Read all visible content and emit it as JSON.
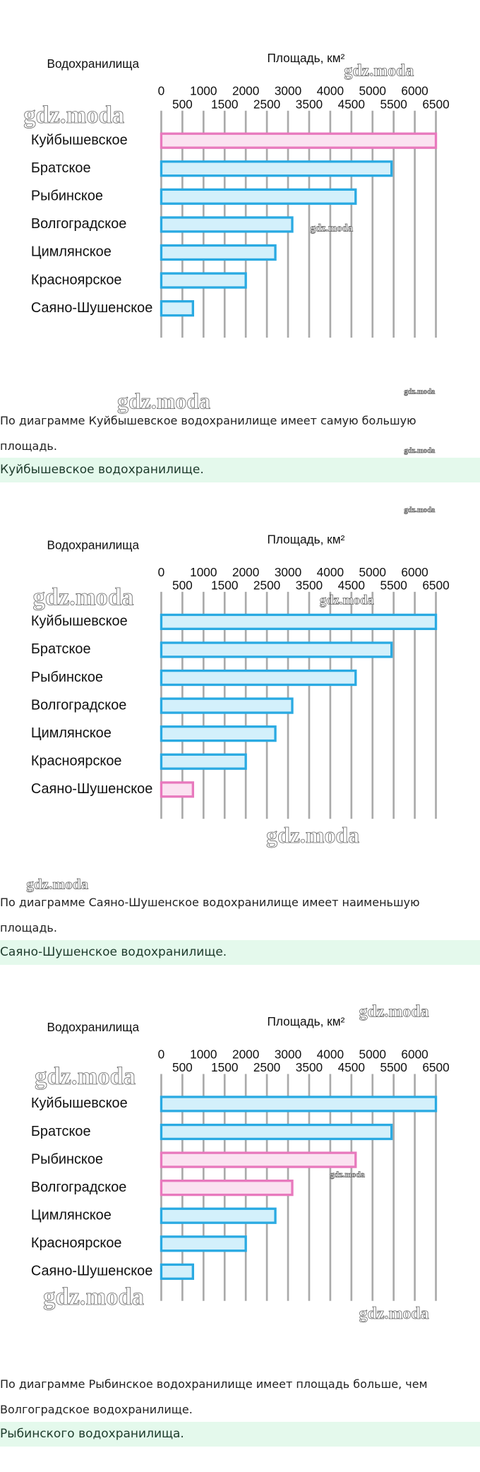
{
  "chart_data": [
    {
      "type": "hbar",
      "title": "Водохранилища",
      "x_label": "Площадь, км²",
      "categories": [
        "Куйбышевское",
        "Братское",
        "Рыбинское",
        "Волгоградское",
        "Цимлянское",
        "Красноярское",
        "Саяно-Шушенское"
      ],
      "values": [
        6500,
        5450,
        4600,
        3100,
        2700,
        2000,
        750
      ],
      "colors": [
        "#e879bd",
        "#2aaae2",
        "#2aaae2",
        "#2aaae2",
        "#2aaae2",
        "#2aaae2",
        "#2aaae2"
      ],
      "xlim": [
        0,
        6500
      ],
      "xticks": [
        0,
        500,
        1000,
        1500,
        2000,
        2500,
        3000,
        3500,
        4000,
        4500,
        5000,
        5500,
        6000,
        6500
      ],
      "grid": true
    },
    {
      "type": "hbar",
      "title": "Водохранилища",
      "x_label": "Площадь, км²",
      "categories": [
        "Куйбышевское",
        "Братское",
        "Рыбинское",
        "Волгоградское",
        "Цимлянское",
        "Красноярское",
        "Саяно-Шушенское"
      ],
      "values": [
        6500,
        5450,
        4600,
        3100,
        2700,
        2000,
        750
      ],
      "colors": [
        "#2aaae2",
        "#2aaae2",
        "#2aaae2",
        "#2aaae2",
        "#2aaae2",
        "#2aaae2",
        "#e879bd"
      ],
      "xlim": [
        0,
        6500
      ],
      "xticks": [
        0,
        500,
        1000,
        1500,
        2000,
        2500,
        3000,
        3500,
        4000,
        4500,
        5000,
        5500,
        6000,
        6500
      ],
      "grid": true
    },
    {
      "type": "hbar",
      "title": "Водохранилища",
      "x_label": "Площадь, км²",
      "categories": [
        "Куйбышевское",
        "Братское",
        "Рыбинское",
        "Волгоградское",
        "Цимлянское",
        "Красноярское",
        "Саяно-Шушенское"
      ],
      "values": [
        6500,
        5450,
        4600,
        3100,
        2700,
        2000,
        750
      ],
      "colors": [
        "#2aaae2",
        "#2aaae2",
        "#e879bd",
        "#e879bd",
        "#2aaae2",
        "#2aaae2",
        "#2aaae2"
      ],
      "xlim": [
        0,
        6500
      ],
      "xticks": [
        0,
        500,
        1000,
        1500,
        2000,
        2500,
        3000,
        3500,
        4000,
        4500,
        5000,
        5500,
        6000,
        6500
      ],
      "grid": true
    }
  ],
  "sections": [
    {
      "question": "По диаграмме Куйбышевское водохранилище имеет самую большую площадь.",
      "answer": "Куйбышевское водохранилище."
    },
    {
      "question": "По диаграмме Саяно-Шушенское водохранилище имеет наименьшую площадь.",
      "answer": "Саяно-Шушенское водохранилище."
    },
    {
      "question": "По диаграмме Рыбинское водохранилище имеет площадь больше, чем Волгоградское водохранилище.",
      "answer": "Рыбинского водохранилища."
    }
  ],
  "watermark": "gdz.moda"
}
